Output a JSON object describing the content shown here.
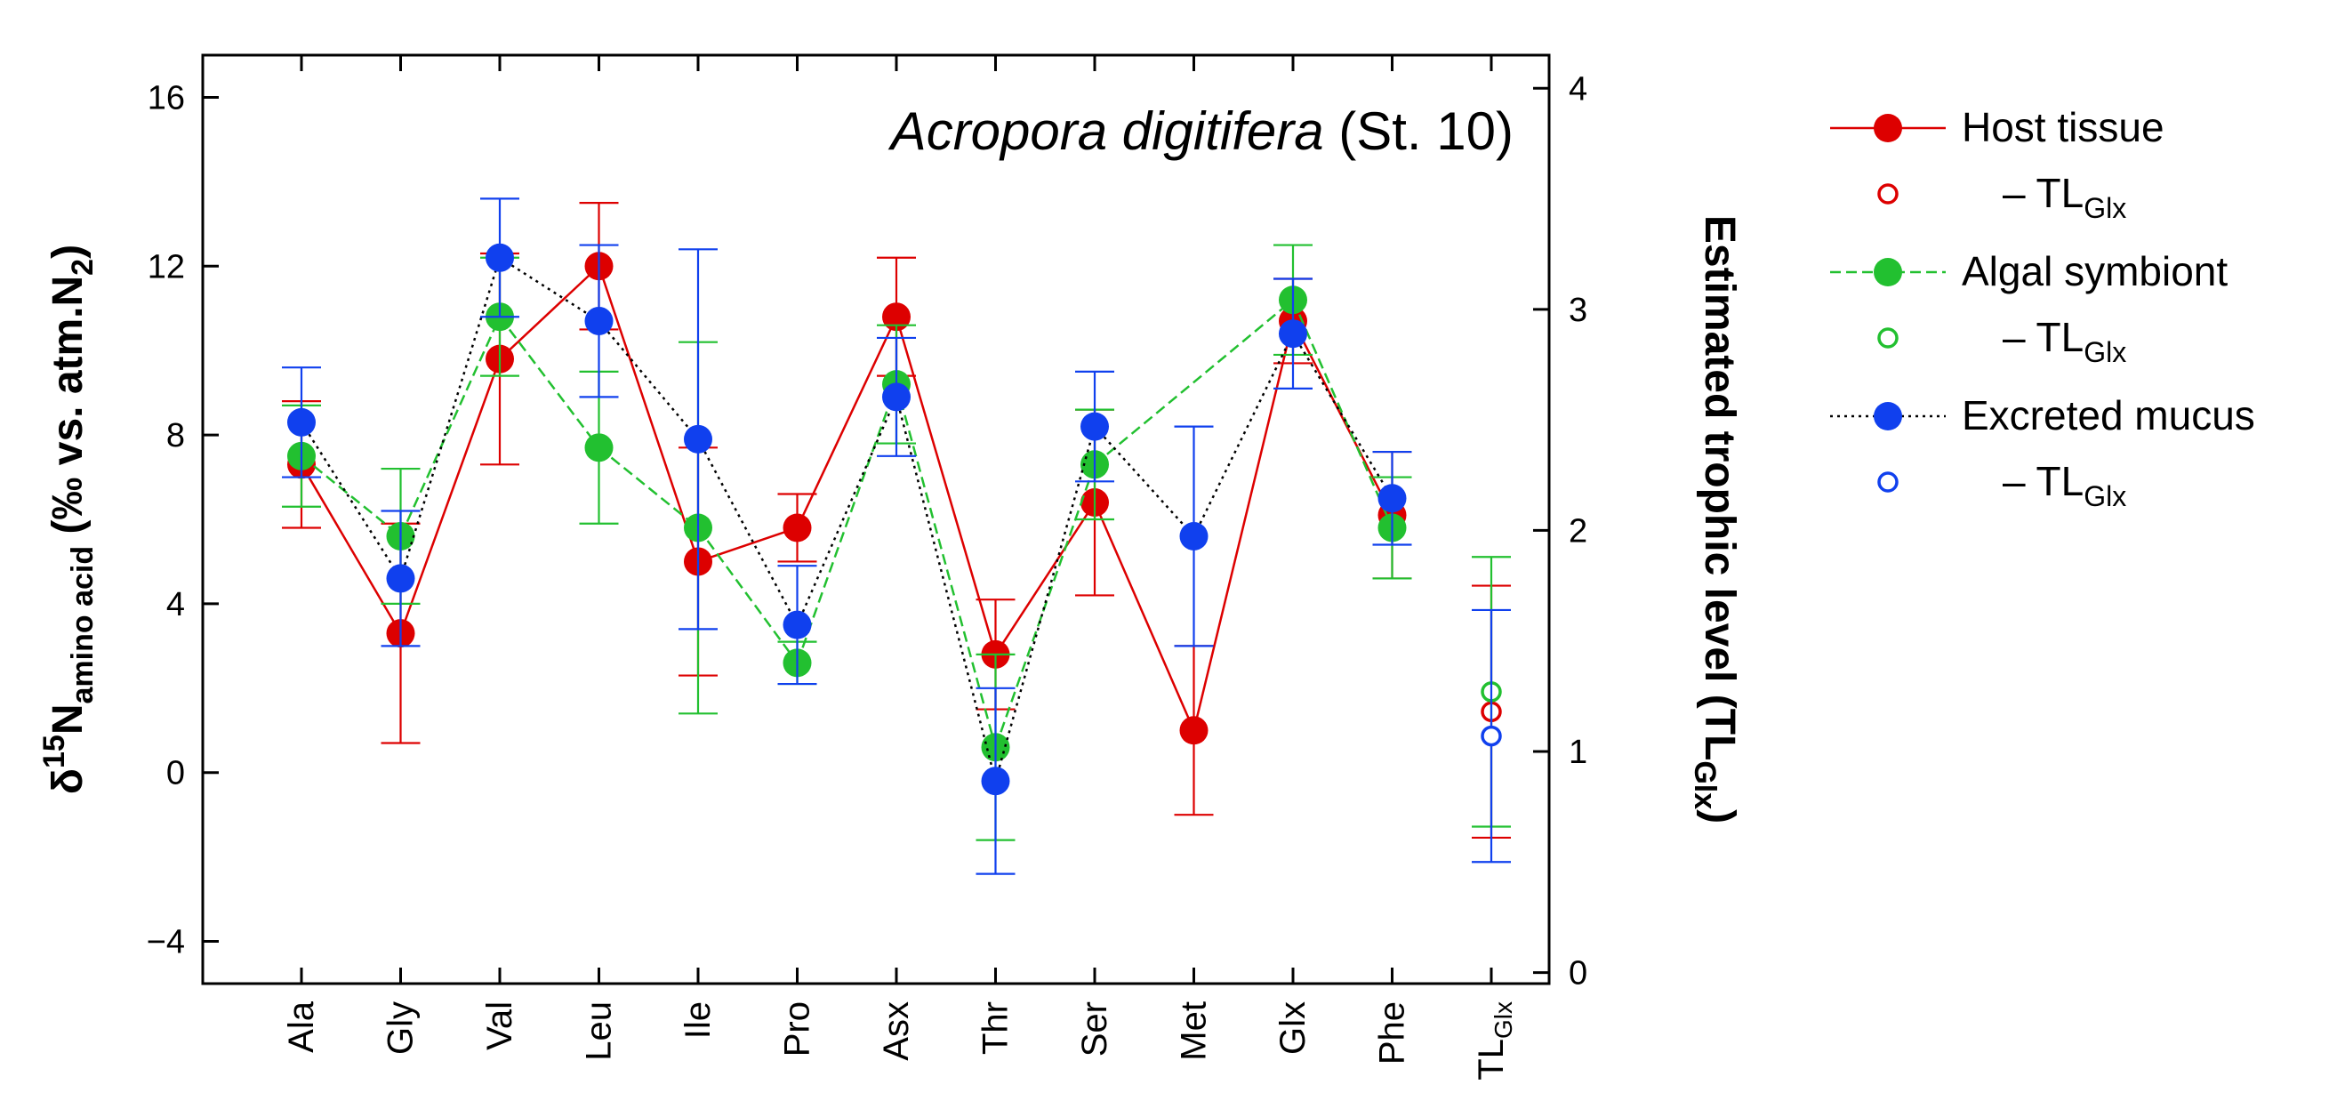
{
  "chart_data": {
    "type": "scatter",
    "title": "Acropora digitifera (St. 10)",
    "title_parts": {
      "species": "Acropora digitifera",
      "station": "(St. 10)"
    },
    "ylabel": {
      "delta": "δ",
      "sup": "15",
      "main": "N",
      "sub": "amino acid",
      "rest": " (‰ vs. atm.N",
      "sub2": "2",
      "close": ")"
    },
    "y2label": {
      "main": "Estimated trophic level (TL",
      "sub": "Glx",
      "close": ")"
    },
    "categories": [
      "Ala",
      "Gly",
      "Val",
      "Leu",
      "Ile",
      "Pro",
      "Asx",
      "Thr",
      "Ser",
      "Met",
      "Glx",
      "Phe"
    ],
    "tl_category": {
      "main": "TL",
      "sub": "Glx"
    },
    "ylim": [
      -5,
      17
    ],
    "yticks": [
      -4,
      0,
      4,
      8,
      12,
      16
    ],
    "ytick_labels": [
      "−4",
      "0",
      "4",
      "8",
      "12",
      "16"
    ],
    "y2lim": [
      -0.05,
      4.15
    ],
    "y2ticks": [
      0,
      1,
      2,
      3,
      4
    ],
    "y2tick_labels": [
      "0",
      "1",
      "2",
      "3",
      "4"
    ],
    "grid": false,
    "legend_position": "outside-right",
    "series": [
      {
        "name": "Host tissue",
        "color": "#dd0000",
        "line": "solid",
        "values": [
          7.3,
          3.3,
          9.8,
          12.0,
          5.0,
          5.8,
          10.8,
          2.8,
          6.4,
          1.0,
          10.7,
          6.1
        ],
        "err": [
          1.5,
          2.6,
          2.5,
          1.5,
          2.7,
          0.8,
          1.4,
          1.3,
          2.2,
          2.0,
          1.0,
          1.5
        ],
        "tl": 1.18,
        "tl_err": 0.57,
        "tl_legend": {
          "prefix": "– TL",
          "sub": "Glx"
        }
      },
      {
        "name": "Algal symbiont",
        "color": "#22c030",
        "line": "dashed",
        "values": [
          7.5,
          5.6,
          10.8,
          7.7,
          5.8,
          2.6,
          9.2,
          0.6,
          7.3,
          null,
          11.2,
          5.8
        ],
        "err": [
          1.2,
          1.6,
          1.4,
          1.8,
          4.4,
          0.5,
          1.4,
          2.2,
          1.3,
          null,
          1.3,
          1.2
        ],
        "tl": 1.27,
        "tl_err": 0.61,
        "tl_legend": {
          "prefix": "– TL",
          "sub": "Glx"
        }
      },
      {
        "name": "Excreted mucus",
        "color": "#1040ee",
        "line": "dotted",
        "values": [
          8.3,
          4.6,
          12.2,
          10.7,
          7.9,
          3.5,
          8.9,
          -0.2,
          8.2,
          5.6,
          10.4,
          6.5
        ],
        "err": [
          1.3,
          1.6,
          1.4,
          1.8,
          4.5,
          1.4,
          1.4,
          2.2,
          1.3,
          2.6,
          1.3,
          1.1
        ],
        "tl": 1.07,
        "tl_err": 0.57,
        "tl_legend": {
          "prefix": "– TL",
          "sub": "Glx"
        }
      }
    ]
  }
}
